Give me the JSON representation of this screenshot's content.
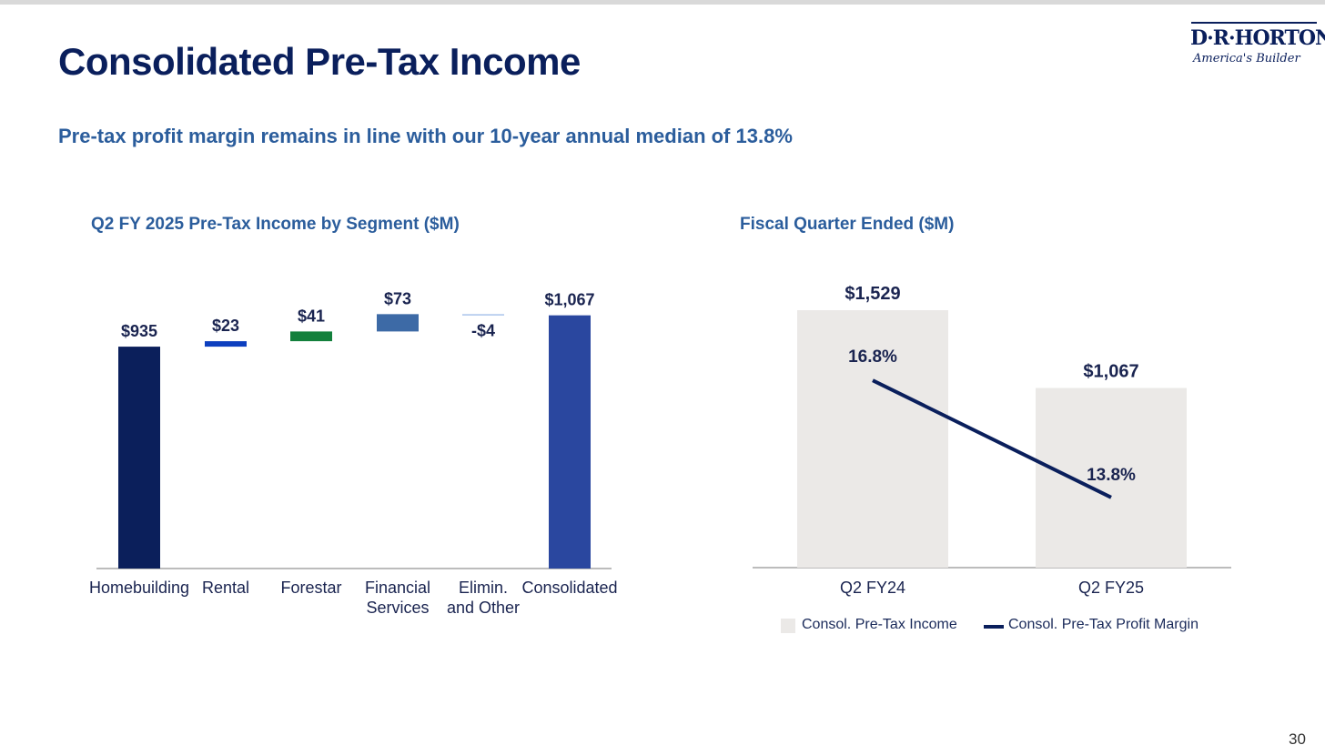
{
  "header": {
    "title": "Consolidated Pre-Tax Income",
    "subtitle": "Pre-tax profit margin remains in line with our 10-year annual median of 13.8%"
  },
  "logo": {
    "name": "D·R·HORTON",
    "tagline": "America's Builder"
  },
  "page_number": "30",
  "colors": {
    "title": "#0a1f5c",
    "subtitle": "#2b5d9c",
    "homebuilding": "#0b1f5b",
    "rental": "#0d3fbf",
    "forestar": "#13803c",
    "financial_services": "#3d6aa6",
    "elimin_other": "#a9c4ec",
    "consolidated": "#2a479f",
    "income_bars": "#ebe9e7",
    "margin_line": "#0a1f5c"
  },
  "chart_data": [
    {
      "type": "bar",
      "subtype": "waterfall",
      "title": "Q2 FY 2025 Pre-Tax Income by Segment ($M)",
      "categories": [
        [
          "Homebuilding"
        ],
        [
          "Rental"
        ],
        [
          "Forestar"
        ],
        [
          "Financial",
          "Services"
        ],
        [
          "Elimin.",
          "and Other"
        ],
        [
          "Consolidated"
        ]
      ],
      "values": [
        935,
        23,
        41,
        73,
        -4,
        1067
      ],
      "data_labels": [
        "$935",
        "$23",
        "$41",
        "$73",
        "-$4",
        "$1,067"
      ],
      "bar_kind": [
        "total",
        "delta",
        "delta",
        "delta",
        "delta",
        "total"
      ],
      "ylim": [
        0,
        1150
      ]
    },
    {
      "type": "bar",
      "subtype": "bar-with-line",
      "title": "Fiscal Quarter Ended ($M)",
      "categories": [
        "Q2 FY24",
        "Q2 FY25"
      ],
      "series": [
        {
          "name": "Consol. Pre-Tax Income",
          "type": "bar",
          "values": [
            1529,
            1067
          ],
          "data_labels": [
            "$1,529",
            "$1,067"
          ]
        },
        {
          "name": "Consol. Pre-Tax Profit Margin",
          "type": "line",
          "values": [
            16.8,
            13.8
          ],
          "data_labels": [
            "16.8%",
            "13.8%"
          ]
        }
      ],
      "ylim": [
        0,
        1529
      ],
      "line_ylim": [
        12.0,
        18.6
      ],
      "legend_position": "bottom"
    }
  ]
}
